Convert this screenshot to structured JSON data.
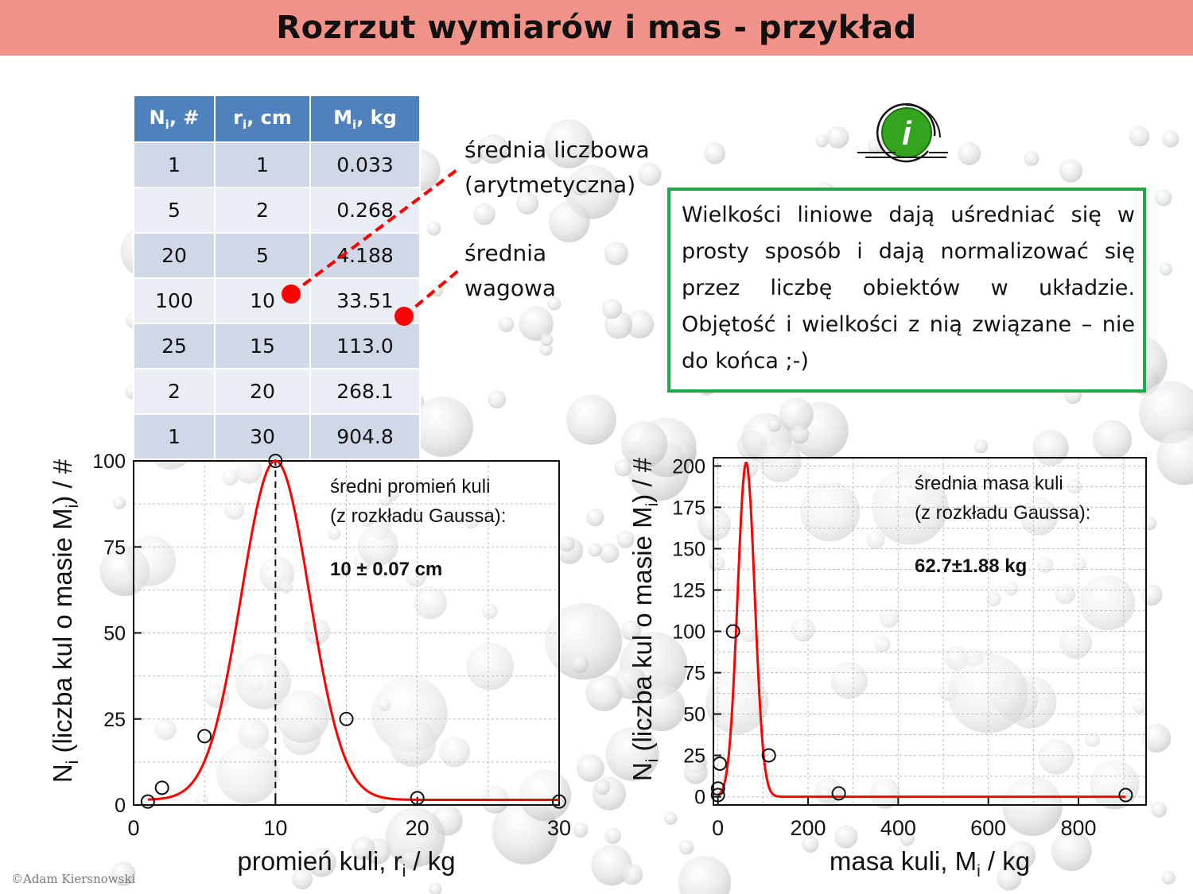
{
  "title": "Rozrzut wymiarów i mas - przykład",
  "table": {
    "headers": [
      {
        "main": "N",
        "sub": "i",
        "rest": ", #"
      },
      {
        "main": "r",
        "sub": "i",
        "rest": ", cm"
      },
      {
        "main": "M",
        "sub": "i",
        "rest": ", kg"
      }
    ],
    "rows": [
      [
        "1",
        "1",
        "0.033"
      ],
      [
        "5",
        "2",
        "0.268"
      ],
      [
        "20",
        "5",
        "4.188"
      ],
      [
        "100",
        "10",
        "33.51"
      ],
      [
        "25",
        "15",
        "113.0"
      ],
      [
        "2",
        "20",
        "268.1"
      ],
      [
        "1",
        "30",
        "904.8"
      ]
    ]
  },
  "annotations": {
    "mean_number_line1": "średnia liczbowa",
    "mean_number_line2": "(arytmetyczna)",
    "mean_weight_line1": "średnia",
    "mean_weight_line2": "wagowa"
  },
  "info_icon": "info-icon",
  "info_box": "Wielkości liniowe dają uśredniać się w prosty sposób i dają normalizować się przez liczbę obiektów w układzie. Objętość i wielkości z nią związane – nie do końca ;-)",
  "copyright": "©Adam Kiersnowski",
  "colors": {
    "title_bar": "#f2938a",
    "table_header": "#4f81bd",
    "info_border": "#1fa84a",
    "fit_line": "#ff0000",
    "marker": "#ff0000"
  },
  "chart_data": [
    {
      "type": "scatter",
      "x": [
        1,
        2,
        5,
        10,
        15,
        20,
        30
      ],
      "y": [
        1,
        5,
        20,
        100,
        25,
        2,
        1
      ],
      "fit": {
        "type": "gaussian",
        "center": 10,
        "amplitude": 98.5,
        "sigma": 2.4,
        "offset": 1.5
      },
      "mean_marker_x": 10,
      "xlim": [
        0,
        30
      ],
      "ylim": [
        0,
        100
      ],
      "xticks": [
        0,
        10,
        20,
        30
      ],
      "yticks": [
        0,
        25,
        50,
        75,
        100
      ],
      "xlabel": {
        "main": "promień kuli, r",
        "sub": "i",
        "rest": " / kg"
      },
      "ylabel": {
        "main": "N",
        "sub": "i",
        "mid": " (liczba kul o masie M",
        "sub2": "i",
        "rest": ") / #"
      },
      "annotation_line1": "średni promień kuli",
      "annotation_line2": "(z rozkładu Gaussa):",
      "annotation_value": "10 ± 0.07 cm",
      "grid": true
    },
    {
      "type": "scatter",
      "x": [
        0.033,
        0.268,
        4.188,
        33.51,
        113.0,
        268.1,
        904.8
      ],
      "y": [
        1,
        5,
        20,
        100,
        25,
        2,
        1
      ],
      "fit": {
        "type": "gaussian",
        "center": 62.7,
        "amplitude": 202,
        "sigma": 19,
        "offset": 0
      },
      "xlim": [
        -10,
        950
      ],
      "ylim": [
        -5,
        205
      ],
      "xticks": [
        0,
        200,
        400,
        600,
        800
      ],
      "yticks": [
        0,
        25,
        50,
        75,
        100,
        125,
        150,
        175,
        200
      ],
      "xlabel": {
        "main": "masa kuli, M",
        "sub": "i",
        "rest": " / kg"
      },
      "ylabel": {
        "main": "N",
        "sub": "i",
        "mid": " (liczba kul o masie M",
        "sub2": "i",
        "rest": ") / #"
      },
      "annotation_line1": "średnia masa kuli",
      "annotation_line2": "(z rozkładu Gaussa):",
      "annotation_value": "62.7±1.88 kg",
      "grid": true
    }
  ]
}
